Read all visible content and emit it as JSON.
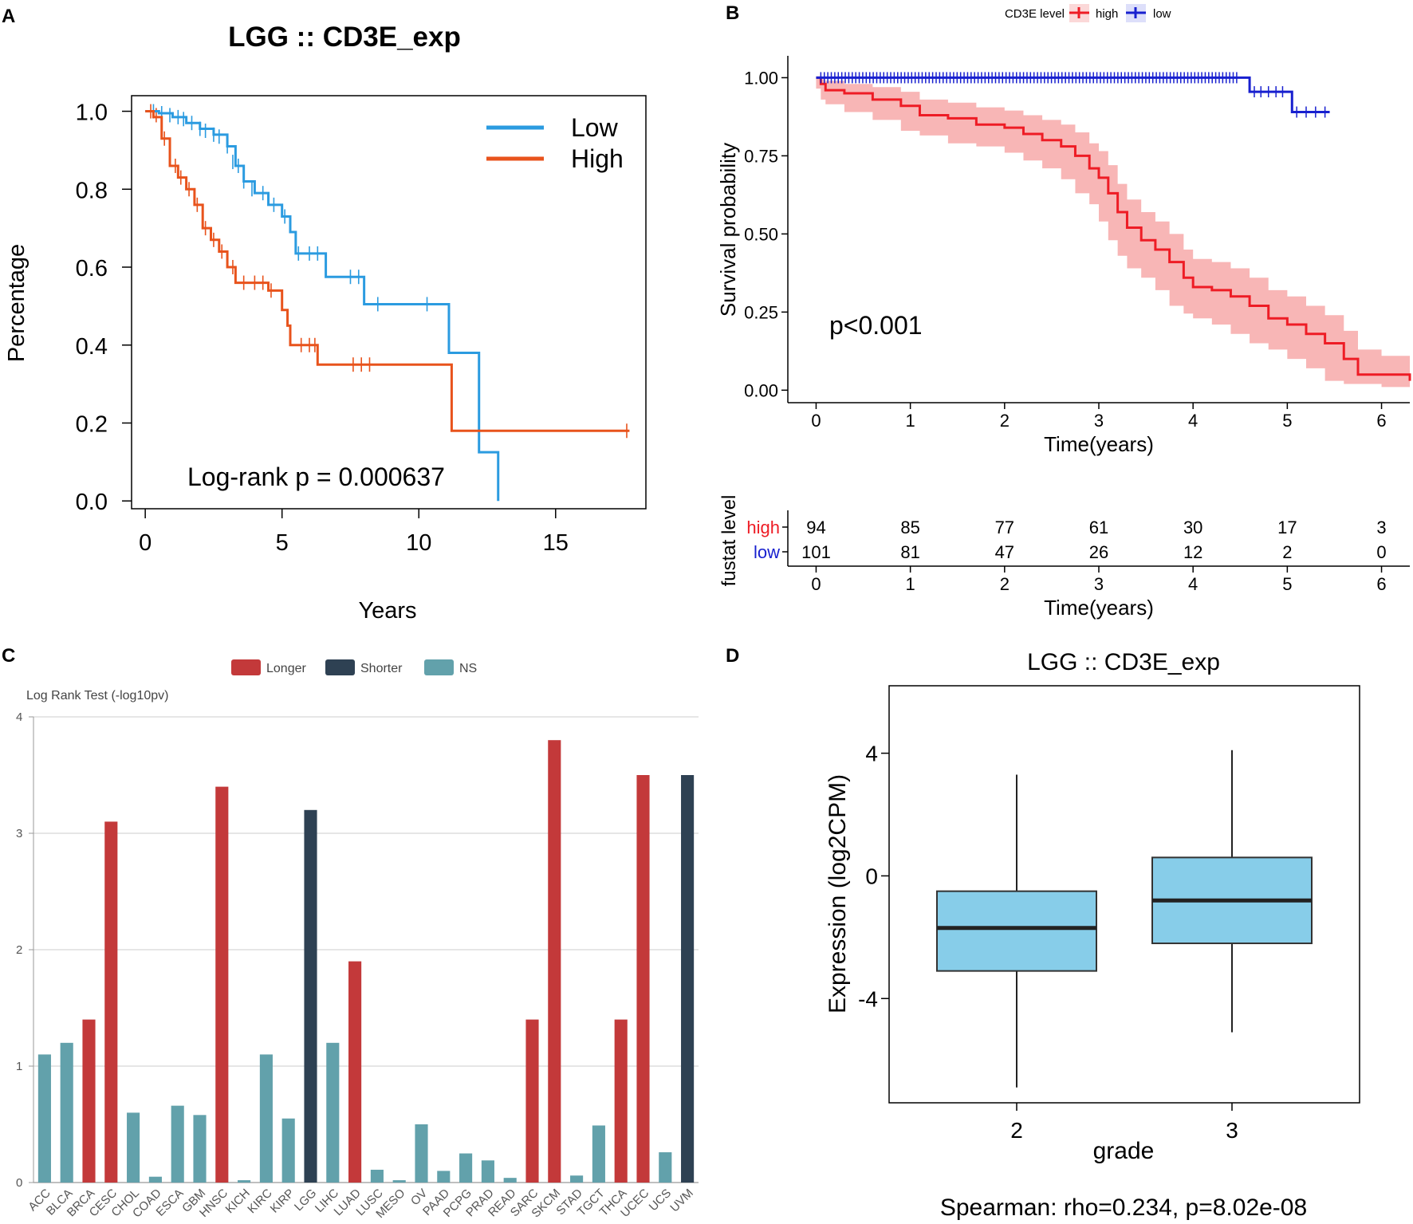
{
  "panel_labels": {
    "a": "A",
    "b": "B",
    "c": "C",
    "d": "D"
  },
  "colors": {
    "km_low": "#2b9be0",
    "km_high": "#e8531c",
    "b_high": "#ee1c25",
    "b_low": "#1820cf",
    "b_band": "#f7a9a9",
    "longer": "#c3393a",
    "shorter": "#2e4153",
    "ns": "#62a1ab",
    "box_fill": "#87cde9"
  },
  "chart_data": [
    {
      "id": "A",
      "type": "line",
      "title": "LGG :: CD3E_exp",
      "xlabel": "Years",
      "ylabel": "Percentage",
      "xlim": [
        -0.5,
        18.3
      ],
      "ylim": [
        -0.02,
        1.04
      ],
      "xticks": [
        "0",
        "5",
        "10",
        "15"
      ],
      "yticks": [
        "0.0",
        "0.2",
        "0.4",
        "0.6",
        "0.8",
        "1.0"
      ],
      "legend": [
        "Low",
        "High"
      ],
      "annotation": "Log-rank p = 0.000637",
      "series": [
        {
          "name": "Low",
          "color_key": "km_low",
          "x": [
            0,
            0.5,
            1.0,
            1.5,
            2.0,
            2.5,
            3.0,
            3.3,
            3.6,
            4.0,
            4.5,
            5.0,
            5.3,
            5.5,
            6.3,
            6.6,
            7.9,
            8.0,
            11.0,
            11.1,
            12.1,
            12.2,
            12.8,
            12.9
          ],
          "y": [
            1.0,
            0.995,
            0.985,
            0.97,
            0.955,
            0.94,
            0.91,
            0.86,
            0.82,
            0.79,
            0.76,
            0.73,
            0.69,
            0.635,
            0.635,
            0.575,
            0.575,
            0.505,
            0.505,
            0.38,
            0.38,
            0.125,
            0.125,
            0.0
          ],
          "censor_x": [
            0.3,
            0.6,
            0.9,
            1.2,
            1.4,
            1.7,
            2.0,
            2.2,
            2.5,
            2.7,
            3.0,
            3.2,
            3.4,
            3.6,
            3.9,
            4.3,
            4.7,
            5.1,
            5.6,
            6.0,
            6.3,
            7.5,
            7.8,
            8.5,
            10.3
          ],
          "censor_y": [
            1.0,
            0.995,
            0.99,
            0.985,
            0.98,
            0.97,
            0.955,
            0.95,
            0.94,
            0.935,
            0.91,
            0.87,
            0.86,
            0.82,
            0.8,
            0.79,
            0.76,
            0.73,
            0.635,
            0.635,
            0.635,
            0.575,
            0.575,
            0.505,
            0.505
          ]
        },
        {
          "name": "High",
          "color_key": "km_high",
          "x": [
            0,
            0.3,
            0.6,
            0.9,
            1.2,
            1.5,
            1.8,
            2.1,
            2.4,
            2.7,
            3.0,
            3.3,
            3.6,
            4.5,
            5.0,
            5.2,
            5.3,
            6.2,
            6.3,
            11.1,
            11.2,
            17.7
          ],
          "y": [
            1.0,
            0.985,
            0.93,
            0.86,
            0.83,
            0.8,
            0.76,
            0.7,
            0.67,
            0.64,
            0.6,
            0.56,
            0.56,
            0.54,
            0.49,
            0.45,
            0.4,
            0.4,
            0.35,
            0.35,
            0.18,
            0.18
          ],
          "censor_x": [
            0.2,
            0.4,
            0.7,
            0.9,
            1.1,
            1.3,
            1.6,
            1.9,
            2.2,
            2.5,
            2.8,
            3.2,
            3.6,
            4.0,
            4.3,
            4.6,
            5.7,
            6.0,
            6.2,
            7.6,
            7.9,
            8.2,
            17.6
          ],
          "censor_y": [
            1.0,
            0.99,
            0.93,
            0.9,
            0.86,
            0.83,
            0.8,
            0.76,
            0.7,
            0.67,
            0.64,
            0.6,
            0.56,
            0.56,
            0.56,
            0.54,
            0.4,
            0.4,
            0.4,
            0.35,
            0.35,
            0.35,
            0.18
          ]
        }
      ]
    },
    {
      "id": "B",
      "type": "line",
      "xlabel": "Time(years)",
      "ylabel": "Survival probability",
      "xlim": [
        -0.3,
        6.3
      ],
      "ylim": [
        -0.04,
        1.07
      ],
      "xticks": [
        "0",
        "1",
        "2",
        "3",
        "4",
        "5",
        "6"
      ],
      "yticks": [
        "0.00",
        "0.25",
        "0.50",
        "0.75",
        "1.00"
      ],
      "legend_title": "CD3E level",
      "legend": [
        "high",
        "low"
      ],
      "annotation": "p<0.001",
      "series": [
        {
          "name": "high",
          "color_key": "b_high",
          "x": [
            0,
            0.05,
            0.1,
            0.3,
            0.6,
            0.9,
            1.1,
            1.4,
            1.7,
            2.0,
            2.2,
            2.4,
            2.6,
            2.75,
            2.9,
            3.0,
            3.1,
            3.2,
            3.3,
            3.45,
            3.6,
            3.75,
            3.9,
            4.0,
            4.2,
            4.4,
            4.6,
            4.8,
            5.0,
            5.2,
            5.4,
            5.6,
            5.75,
            6.0,
            6.3
          ],
          "y": [
            1.0,
            0.98,
            0.96,
            0.95,
            0.93,
            0.91,
            0.88,
            0.87,
            0.85,
            0.84,
            0.82,
            0.8,
            0.78,
            0.75,
            0.71,
            0.68,
            0.63,
            0.57,
            0.52,
            0.48,
            0.45,
            0.41,
            0.36,
            0.33,
            0.32,
            0.3,
            0.27,
            0.23,
            0.21,
            0.18,
            0.15,
            0.1,
            0.05,
            0.05,
            0.03
          ],
          "band_upper": [
            1.0,
            0.995,
            0.99,
            0.98,
            0.97,
            0.955,
            0.93,
            0.92,
            0.905,
            0.895,
            0.88,
            0.865,
            0.85,
            0.825,
            0.79,
            0.765,
            0.72,
            0.66,
            0.61,
            0.57,
            0.54,
            0.5,
            0.45,
            0.42,
            0.41,
            0.39,
            0.36,
            0.32,
            0.3,
            0.27,
            0.24,
            0.19,
            0.13,
            0.11,
            0.08
          ],
          "band_lower": [
            1.0,
            0.965,
            0.93,
            0.915,
            0.89,
            0.865,
            0.83,
            0.815,
            0.79,
            0.78,
            0.76,
            0.735,
            0.71,
            0.675,
            0.63,
            0.595,
            0.54,
            0.48,
            0.43,
            0.39,
            0.36,
            0.32,
            0.27,
            0.245,
            0.23,
            0.21,
            0.18,
            0.15,
            0.13,
            0.1,
            0.07,
            0.03,
            0.02,
            0.02,
            0.01
          ]
        },
        {
          "name": "low",
          "color_key": "b_low",
          "x": [
            0,
            4.55,
            4.6,
            5.0,
            5.05,
            5.45
          ],
          "y": [
            1.0,
            1.0,
            0.955,
            0.955,
            0.89,
            0.89
          ],
          "censor_count": 120
        }
      ],
      "risk_table": {
        "ylabel": "fustat level",
        "xlabel": "Time(years)",
        "rows": [
          {
            "name": "high",
            "color_key": "b_high",
            "values": [
              "94",
              "85",
              "77",
              "61",
              "30",
              "17",
              "3"
            ]
          },
          {
            "name": "low",
            "color_key": "b_low",
            "values": [
              "101",
              "81",
              "47",
              "26",
              "12",
              "2",
              "0"
            ]
          }
        ]
      }
    },
    {
      "id": "C",
      "type": "bar",
      "subtitle": "Log Rank Test (-log10pv)",
      "ylim": [
        0,
        4
      ],
      "yticks": [
        "0",
        "1",
        "2",
        "3",
        "4"
      ],
      "legend": [
        {
          "label": "Longer",
          "color_key": "longer"
        },
        {
          "label": "Shorter",
          "color_key": "shorter"
        },
        {
          "label": "NS",
          "color_key": "ns"
        }
      ],
      "categories": [
        "ACC",
        "BLCA",
        "BRCA",
        "CESC",
        "CHOL",
        "COAD",
        "ESCA",
        "GBM",
        "HNSC",
        "KICH",
        "KIRC",
        "KIRP",
        "LGG",
        "LIHC",
        "LUAD",
        "LUSC",
        "MESO",
        "OV",
        "PAAD",
        "PCPG",
        "PRAD",
        "READ",
        "SARC",
        "SKCM",
        "STAD",
        "TGCT",
        "THCA",
        "UCEC",
        "UCS",
        "UVM"
      ],
      "values": [
        1.1,
        1.2,
        1.4,
        3.1,
        0.6,
        0.05,
        0.66,
        0.58,
        3.4,
        0.02,
        1.1,
        0.55,
        3.2,
        1.2,
        1.9,
        0.11,
        0.02,
        0.5,
        0.1,
        0.25,
        0.19,
        0.04,
        1.4,
        3.8,
        0.06,
        0.49,
        1.4,
        3.5,
        0.26,
        3.5
      ],
      "groups": [
        "NS",
        "NS",
        "Longer",
        "Longer",
        "NS",
        "NS",
        "NS",
        "NS",
        "Longer",
        "NS",
        "NS",
        "NS",
        "Shorter",
        "NS",
        "Longer",
        "NS",
        "NS",
        "NS",
        "NS",
        "NS",
        "NS",
        "NS",
        "Longer",
        "Longer",
        "NS",
        "NS",
        "Longer",
        "Longer",
        "NS",
        "Shorter"
      ]
    },
    {
      "id": "D",
      "type": "box",
      "title": "LGG :: CD3E_exp",
      "xlabel": "grade",
      "ylabel": "Expression (log2CPM)",
      "ylim": [
        -7.4,
        6.2
      ],
      "yticks": [
        "4",
        "0",
        "-4"
      ],
      "categories": [
        "2",
        "3"
      ],
      "boxes": [
        {
          "label": "2",
          "min": -6.9,
          "q1": -3.1,
          "median": -1.7,
          "q3": -0.5,
          "max": 3.3
        },
        {
          "label": "3",
          "min": -5.1,
          "q1": -2.2,
          "median": -0.8,
          "q3": 0.6,
          "max": 4.1
        }
      ],
      "annotation": "Spearman: rho=0.234, p=8.02e-08"
    }
  ]
}
